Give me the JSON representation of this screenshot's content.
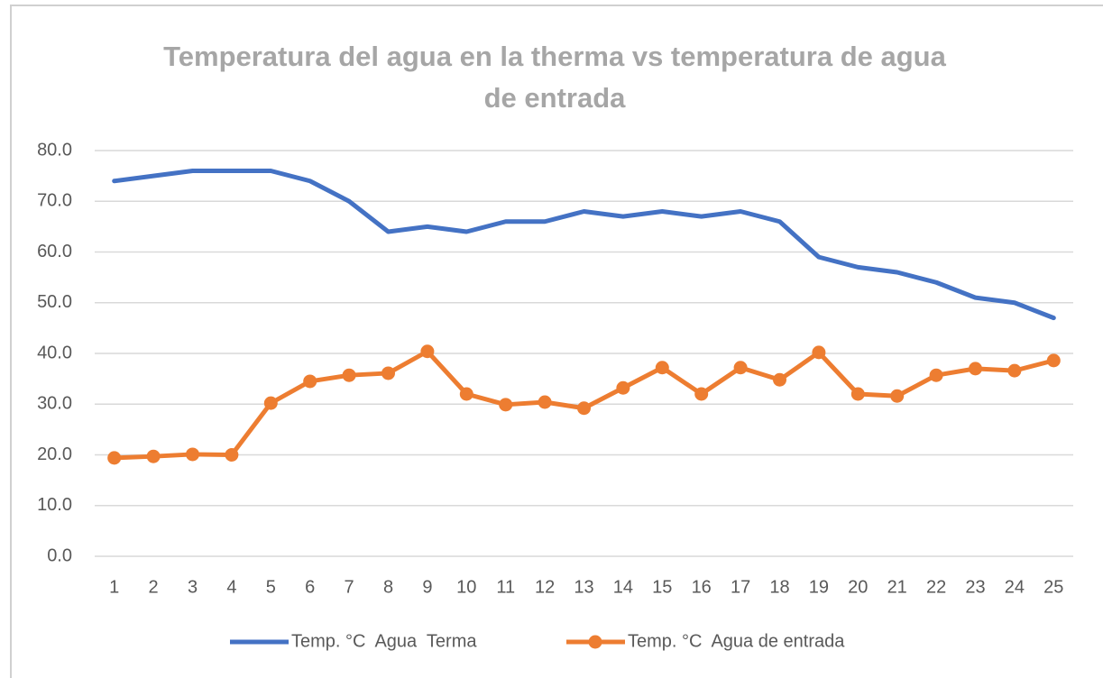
{
  "chart_data": {
    "type": "line",
    "title": "Temperatura del agua en la therma vs temperatura de agua de entrada",
    "categories": [
      "1",
      "2",
      "3",
      "4",
      "5",
      "6",
      "7",
      "8",
      "9",
      "10",
      "11",
      "12",
      "13",
      "14",
      "15",
      "16",
      "17",
      "18",
      "19",
      "20",
      "21",
      "22",
      "23",
      "24",
      "25"
    ],
    "series": [
      {
        "name": "Temp. °C  Agua  Terma",
        "color": "#4472c4",
        "marker": false,
        "values": [
          74,
          75,
          76,
          76,
          76,
          74,
          70,
          64,
          65,
          64,
          66,
          66,
          68,
          67,
          68,
          67,
          68,
          66,
          59,
          57,
          56,
          54,
          51,
          50,
          47
        ]
      },
      {
        "name": "Temp. °C  Agua de entrada",
        "color": "#ed7d31",
        "marker": true,
        "values": [
          19.4,
          19.7,
          20.1,
          20.0,
          30.2,
          34.5,
          35.7,
          36.1,
          40.4,
          32.0,
          29.9,
          30.4,
          29.2,
          33.2,
          37.2,
          32.0,
          37.2,
          34.8,
          40.2,
          32.0,
          31.6,
          35.7,
          37.0,
          36.6,
          38.6
        ]
      }
    ],
    "ylim": [
      0,
      80
    ],
    "yticks": [
      {
        "value": 0,
        "label": "0.0"
      },
      {
        "value": 10,
        "label": "10.0"
      },
      {
        "value": 20,
        "label": "20.0"
      },
      {
        "value": 30,
        "label": "30.0"
      },
      {
        "value": 40,
        "label": "40.0"
      },
      {
        "value": 50,
        "label": "50.0"
      },
      {
        "value": 60,
        "label": "60.0"
      },
      {
        "value": 70,
        "label": "70.0"
      },
      {
        "value": 80,
        "label": "80.0"
      }
    ],
    "grid": true,
    "legend": "bottom"
  }
}
